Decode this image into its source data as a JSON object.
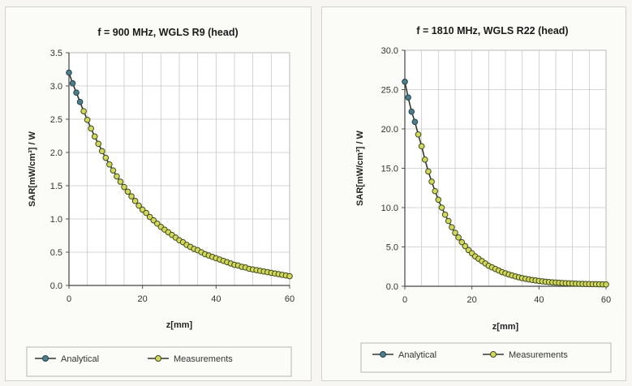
{
  "colors": {
    "analytical_fill": "#4e7d8c",
    "analytical_stroke": "#23414d",
    "measure_fill": "#d4d85a",
    "measure_stroke": "#3e4a1e",
    "grid": "#c8c8c8",
    "line": "#33362c"
  },
  "chart_data": [
    {
      "type": "line",
      "title": "f = 900 MHz, WGLS R9 (head)",
      "xlabel": "z[mm]",
      "ylabel": "SAR[mW/cm³] / W",
      "xlim": [
        0,
        60
      ],
      "ylim": [
        0,
        3.5
      ],
      "xticks": [
        "0",
        "20",
        "40",
        "60"
      ],
      "yticks": [
        "0.0",
        "0.5",
        "1.0",
        "1.5",
        "2.0",
        "2.5",
        "3.0",
        "3.5"
      ],
      "grid": true,
      "legend_position": "bottom",
      "series": [
        {
          "name": "Analytical",
          "x": [
            0,
            1,
            2,
            3
          ],
          "y": [
            3.2,
            3.04,
            2.9,
            2.76
          ]
        },
        {
          "name": "Measurements",
          "x": [
            4,
            5,
            6,
            7,
            8,
            9,
            10,
            11,
            12,
            13,
            14,
            15,
            16,
            17,
            18,
            19,
            20,
            21,
            22,
            23,
            24,
            25,
            26,
            27,
            28,
            29,
            30,
            31,
            32,
            33,
            34,
            35,
            36,
            37,
            38,
            39,
            40,
            41,
            42,
            43,
            44,
            45,
            46,
            47,
            48,
            49,
            50,
            51,
            52,
            53,
            54,
            55,
            56,
            57,
            58,
            59,
            60
          ],
          "y": [
            2.62,
            2.49,
            2.36,
            2.24,
            2.13,
            2.02,
            1.92,
            1.82,
            1.73,
            1.64,
            1.56,
            1.48,
            1.41,
            1.34,
            1.27,
            1.2,
            1.14,
            1.09,
            1.03,
            0.98,
            0.93,
            0.88,
            0.84,
            0.8,
            0.76,
            0.72,
            0.68,
            0.65,
            0.61,
            0.58,
            0.55,
            0.53,
            0.5,
            0.47,
            0.45,
            0.43,
            0.41,
            0.39,
            0.37,
            0.35,
            0.33,
            0.31,
            0.3,
            0.28,
            0.27,
            0.25,
            0.24,
            0.23,
            0.22,
            0.21,
            0.2,
            0.19,
            0.18,
            0.17,
            0.16,
            0.15,
            0.14
          ]
        }
      ]
    },
    {
      "type": "line",
      "title": "f = 1810 MHz, WGLS R22 (head)",
      "xlabel": "z[mm]",
      "ylabel": "SAR[mW/cm³] / W",
      "xlim": [
        0,
        60
      ],
      "ylim": [
        0,
        30
      ],
      "xticks": [
        "0",
        "20",
        "40",
        "60"
      ],
      "yticks": [
        "0.0",
        "5.0",
        "10.0",
        "15.0",
        "20.0",
        "25.0",
        "30.0"
      ],
      "grid": true,
      "legend_position": "bottom",
      "series": [
        {
          "name": "Analytical",
          "x": [
            0,
            1,
            2,
            3
          ],
          "y": [
            26.0,
            24.0,
            22.2,
            20.9
          ]
        },
        {
          "name": "Measurements",
          "x": [
            4,
            5,
            6,
            7,
            8,
            9,
            10,
            11,
            12,
            13,
            14,
            15,
            16,
            17,
            18,
            19,
            20,
            21,
            22,
            23,
            24,
            25,
            26,
            27,
            28,
            29,
            30,
            31,
            32,
            33,
            34,
            35,
            36,
            37,
            38,
            39,
            40,
            41,
            42,
            43,
            44,
            45,
            46,
            47,
            48,
            49,
            50,
            51,
            52,
            53,
            54,
            55,
            56,
            57,
            58,
            59,
            60
          ],
          "y": [
            19.3,
            17.8,
            16.1,
            14.6,
            13.3,
            12.1,
            11.0,
            10.0,
            9.1,
            8.3,
            7.5,
            6.8,
            6.2,
            5.6,
            5.1,
            4.6,
            4.2,
            3.8,
            3.5,
            3.2,
            2.9,
            2.6,
            2.4,
            2.2,
            2.0,
            1.8,
            1.65,
            1.5,
            1.37,
            1.25,
            1.14,
            1.04,
            0.95,
            0.87,
            0.8,
            0.74,
            0.68,
            0.63,
            0.58,
            0.54,
            0.5,
            0.47,
            0.44,
            0.41,
            0.39,
            0.37,
            0.35,
            0.33,
            0.31,
            0.3,
            0.29,
            0.28,
            0.27,
            0.26,
            0.25,
            0.24,
            0.23
          ]
        }
      ]
    }
  ]
}
